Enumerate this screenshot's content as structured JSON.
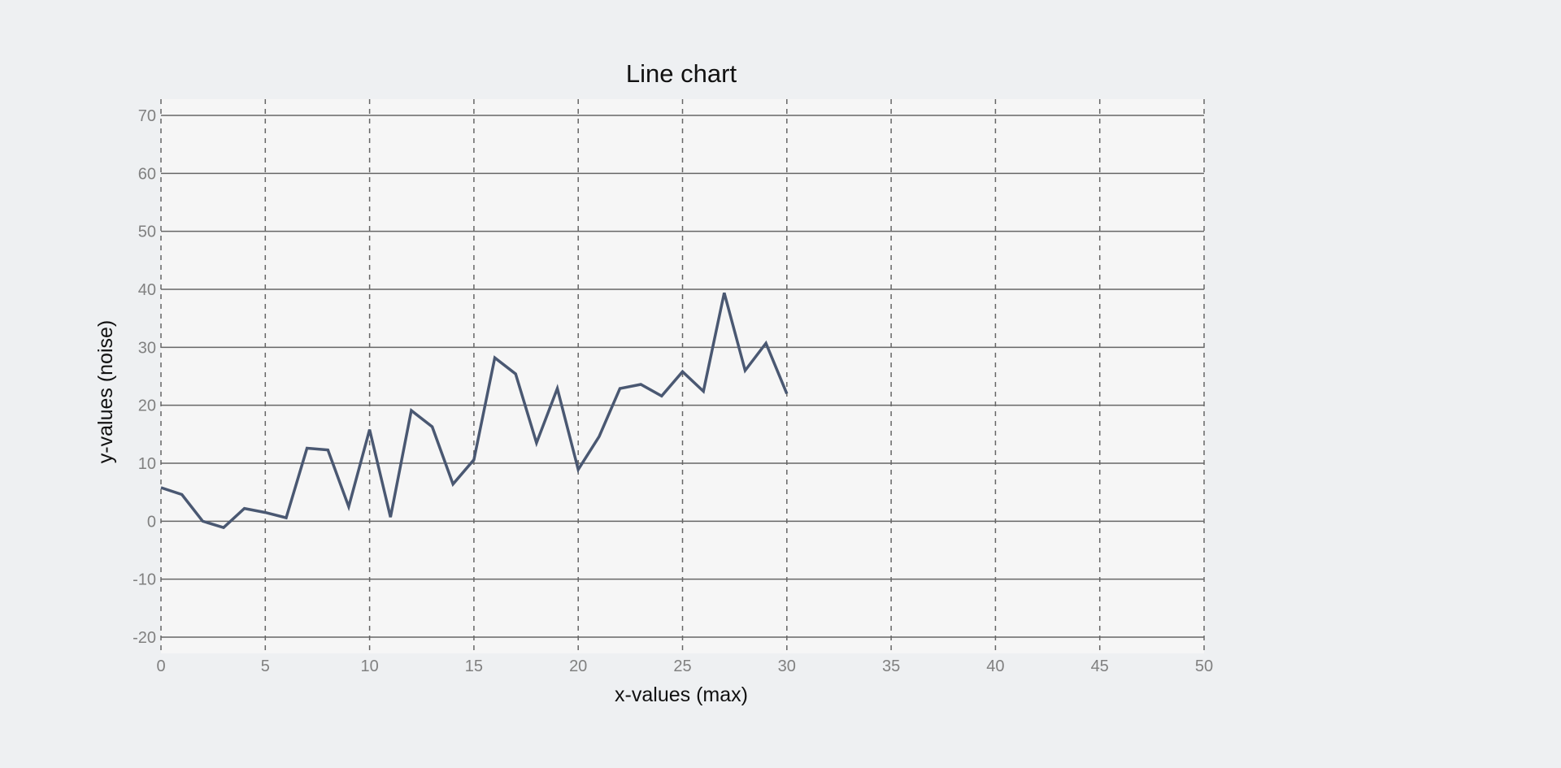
{
  "chart_data": {
    "type": "line",
    "title": "Line chart",
    "xlabel": "x-values (max)",
    "ylabel": "y-values (noise)",
    "xlim": [
      0,
      50
    ],
    "ylim": [
      -20,
      70
    ],
    "x_ticks": [
      "0",
      "5",
      "10",
      "15",
      "20",
      "25",
      "30",
      "35",
      "40",
      "45",
      "50"
    ],
    "y_ticks": [
      "-20",
      "-10",
      "0",
      "10",
      "20",
      "30",
      "40",
      "50",
      "60",
      "70"
    ],
    "grid": true,
    "series": [
      {
        "x": [
          0,
          1,
          2,
          3,
          4,
          5,
          6,
          7,
          8,
          9,
          10,
          11,
          12,
          13,
          14,
          15,
          16,
          17,
          18,
          19,
          20,
          21,
          22,
          23,
          24,
          25,
          26,
          27,
          28,
          29,
          30
        ],
        "y": [
          5.8,
          4.6,
          0,
          -1.1,
          2.2,
          1.5,
          0.6,
          12.6,
          12.3,
          2.5,
          15.8,
          0.7,
          19.1,
          16.3,
          6.4,
          10.6,
          28.2,
          25.4,
          13.5,
          22.9,
          8.9,
          14.6,
          22.9,
          23.6,
          21.6,
          25.8,
          22.4,
          39.4,
          26.0,
          30.7,
          22.0
        ],
        "color": "#4a5872"
      }
    ],
    "colors": {
      "page_background": "#eef0f2",
      "plot_background": "#f6f6f6",
      "grid": "#666666",
      "tick_text": "#808080",
      "title_text": "#111111"
    }
  }
}
